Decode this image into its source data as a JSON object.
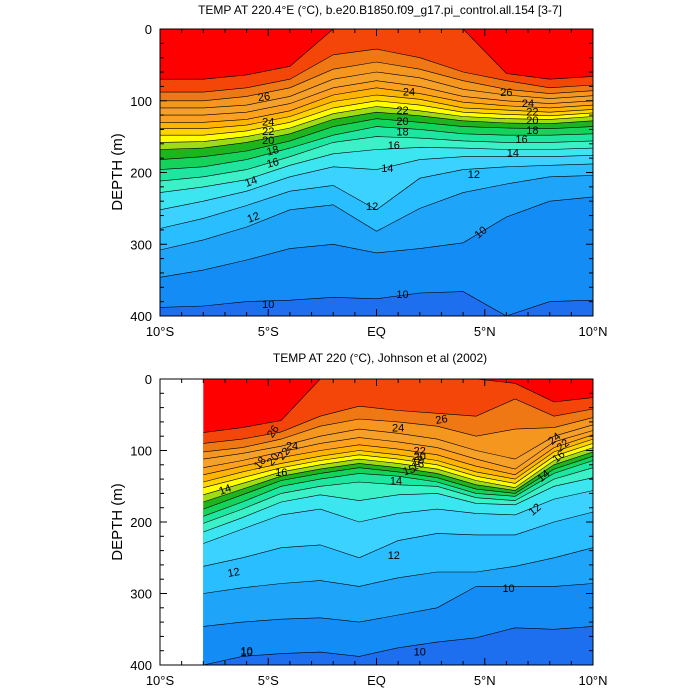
{
  "colors": {
    "c8": "#1e50e6",
    "c9": "#1e6ef0",
    "c10": "#148cf5",
    "c11": "#1ea5fa",
    "c12": "#28beff",
    "c13": "#3cd2ff",
    "c14": "#3ce6f0",
    "c15": "#3cf0c8",
    "c16": "#1ee6a0",
    "c17": "#14d25a",
    "c18": "#1eb41e",
    "c19": "#a0dc14",
    "c20": "#ffff00",
    "c21": "#ffd200",
    "c22": "#ffb400",
    "c23": "#ffa01e",
    "c24": "#f5a028",
    "c25": "#f5961e",
    "c26": "#f07814",
    "c27": "#f5460a",
    "c28": "#ff0000",
    "contour_line": "#000000",
    "frame": "#000000"
  },
  "chart_data": [
    {
      "type": "contour",
      "title": "TEMP AT 220.4°E (°C), b.e20.B1850.f09_g17.pi_control.all.154 [3-7]",
      "ylabel": "DEPTH (m)",
      "xlabel": "",
      "xlim": [
        -10,
        10
      ],
      "ylim": [
        400,
        0
      ],
      "y_inverted": true,
      "x_ticks": [
        -10,
        -5,
        0,
        5,
        10
      ],
      "x_tick_labels": [
        "10°S",
        "5°S",
        "EQ",
        "5°N",
        "10°N"
      ],
      "y_ticks": [
        0,
        100,
        200,
        300,
        400
      ],
      "y_tick_labels": [
        "0",
        "100",
        "200",
        "300",
        "400"
      ],
      "contour_interval": 1,
      "data_xmin": -10,
      "isotherms": [
        {
          "temp": 27,
          "y": [
            70,
            70,
            64,
            52,
            0,
            0,
            0,
            0,
            62,
            70,
            66
          ]
        },
        {
          "temp": 26,
          "y": [
            88,
            88,
            82,
            70,
            36,
            28,
            40,
            60,
            72,
            82,
            78
          ]
        },
        {
          "temp": 25,
          "y": [
            100,
            100,
            94,
            82,
            56,
            46,
            56,
            72,
            84,
            90,
            86
          ]
        },
        {
          "temp": 24,
          "y": [
            110,
            110,
            106,
            94,
            70,
            60,
            68,
            84,
            92,
            97,
            93
          ]
        },
        {
          "temp": 23,
          "y": [
            120,
            120,
            116,
            104,
            82,
            72,
            80,
            94,
            100,
            104,
            100
          ]
        },
        {
          "temp": 22,
          "y": [
            130,
            130,
            126,
            114,
            92,
            82,
            90,
            102,
            107,
            110,
            106
          ]
        },
        {
          "temp": 21,
          "y": [
            139,
            139,
            134,
            122,
            101,
            92,
            98,
            110,
            113,
            116,
            112
          ]
        },
        {
          "temp": 20,
          "y": [
            148,
            148,
            142,
            130,
            110,
            100,
            106,
            116,
            119,
            121,
            117
          ]
        },
        {
          "temp": 19,
          "y": [
            158,
            157,
            150,
            138,
            118,
            108,
            114,
            122,
            125,
            126,
            122
          ]
        },
        {
          "temp": 18,
          "y": [
            168,
            166,
            158,
            146,
            126,
            116,
            121,
            128,
            131,
            132,
            128
          ]
        },
        {
          "temp": 17,
          "y": [
            182,
            178,
            170,
            156,
            136,
            125,
            130,
            136,
            138,
            139,
            136
          ]
        },
        {
          "temp": 16,
          "y": [
            196,
            192,
            182,
            166,
            148,
            136,
            140,
            146,
            148,
            148,
            146
          ]
        },
        {
          "temp": 15,
          "y": [
            212,
            206,
            196,
            178,
            158,
            150,
            152,
            156,
            158,
            158,
            156
          ]
        },
        {
          "temp": 14,
          "y": [
            228,
            220,
            210,
            190,
            174,
            168,
            165,
            166,
            168,
            168,
            166
          ]
        },
        {
          "temp": 13,
          "y": [
            252,
            240,
            226,
            206,
            192,
            196,
            182,
            178,
            178,
            178,
            176
          ]
        },
        {
          "temp": 12,
          "y": [
            278,
            264,
            246,
            226,
            218,
            252,
            208,
            196,
            192,
            190,
            188
          ]
        },
        {
          "temp": 11,
          "y": [
            308,
            294,
            276,
            252,
            245,
            282,
            250,
            228,
            216,
            206,
            204
          ]
        },
        {
          "temp": 10,
          "y": [
            346,
            336,
            322,
            306,
            300,
            312,
            306,
            298,
            262,
            240,
            234
          ]
        },
        {
          "temp": 9,
          "y": [
            388,
            386,
            380,
            378,
            374,
            376,
            368,
            366,
            400,
            380,
            378
          ]
        }
      ],
      "labels": [
        {
          "text": "26",
          "x": -5.2,
          "y": 94,
          "rotate": -8
        },
        {
          "text": "24",
          "x": -5.0,
          "y": 129,
          "rotate": 0
        },
        {
          "text": "22",
          "x": -5.0,
          "y": 142,
          "rotate": 0
        },
        {
          "text": "20",
          "x": -5.0,
          "y": 155,
          "rotate": 0
        },
        {
          "text": "18",
          "x": -4.8,
          "y": 169,
          "rotate": -15
        },
        {
          "text": "16",
          "x": -4.8,
          "y": 186,
          "rotate": -15
        },
        {
          "text": "14",
          "x": -5.8,
          "y": 212,
          "rotate": -20
        },
        {
          "text": "12",
          "x": -5.7,
          "y": 262,
          "rotate": -20
        },
        {
          "text": "10",
          "x": -5.0,
          "y": 383,
          "rotate": 0
        },
        {
          "text": "24",
          "x": 1.5,
          "y": 87,
          "rotate": 0
        },
        {
          "text": "22",
          "x": 1.2,
          "y": 113,
          "rotate": 0
        },
        {
          "text": "20",
          "x": 1.2,
          "y": 128,
          "rotate": 0
        },
        {
          "text": "18",
          "x": 1.2,
          "y": 143,
          "rotate": 0
        },
        {
          "text": "16",
          "x": 0.8,
          "y": 162,
          "rotate": 0
        },
        {
          "text": "14",
          "x": 0.5,
          "y": 194,
          "rotate": 0
        },
        {
          "text": "12",
          "x": -0.2,
          "y": 247,
          "rotate": 0
        },
        {
          "text": "10",
          "x": 1.2,
          "y": 369,
          "rotate": 0
        },
        {
          "text": "26",
          "x": 6.0,
          "y": 88,
          "rotate": 0
        },
        {
          "text": "24",
          "x": 7.0,
          "y": 103,
          "rotate": 0
        },
        {
          "text": "22",
          "x": 7.2,
          "y": 115,
          "rotate": 0
        },
        {
          "text": "20",
          "x": 7.2,
          "y": 127,
          "rotate": 0
        },
        {
          "text": "18",
          "x": 7.2,
          "y": 141,
          "rotate": 0
        },
        {
          "text": "16",
          "x": 6.7,
          "y": 153,
          "rotate": 0
        },
        {
          "text": "14",
          "x": 6.3,
          "y": 172,
          "rotate": 0
        },
        {
          "text": "12",
          "x": 4.5,
          "y": 202,
          "rotate": 0
        },
        {
          "text": "10",
          "x": 4.8,
          "y": 283,
          "rotate": -40
        }
      ]
    },
    {
      "type": "contour",
      "title": "TEMP AT 220 (°C), Johnson et al (2002)",
      "ylabel": "DEPTH (m)",
      "xlabel": "",
      "xlim": [
        -10,
        10
      ],
      "ylim": [
        400,
        0
      ],
      "y_inverted": true,
      "x_ticks": [
        -10,
        -5,
        0,
        5,
        10
      ],
      "x_tick_labels": [
        "10°S",
        "5°S",
        "EQ",
        "5°N",
        "10°N"
      ],
      "y_ticks": [
        0,
        100,
        200,
        300,
        400
      ],
      "y_tick_labels": [
        "0",
        "100",
        "200",
        "300",
        "400"
      ],
      "contour_interval": 1,
      "data_xmin": -8,
      "isotherms": [
        {
          "temp": 27,
          "y": [
            75,
            68,
            58,
            0,
            0,
            0,
            0,
            0,
            6,
            32,
            26
          ]
        },
        {
          "temp": 26,
          "y": [
            90,
            84,
            74,
            52,
            38,
            44,
            48,
            52,
            28,
            52,
            42
          ]
        },
        {
          "temp": 25,
          "y": [
            102,
            96,
            84,
            66,
            56,
            60,
            66,
            80,
            70,
            68,
            54
          ]
        },
        {
          "temp": 24,
          "y": [
            112,
            104,
            94,
            80,
            70,
            76,
            84,
            100,
            112,
            80,
            64
          ]
        },
        {
          "temp": 23,
          "y": [
            124,
            114,
            102,
            90,
            82,
            88,
            96,
            112,
            126,
            88,
            72
          ]
        },
        {
          "temp": 22,
          "y": [
            134,
            122,
            110,
            100,
            92,
            98,
            106,
            122,
            134,
            96,
            78
          ]
        },
        {
          "temp": 21,
          "y": [
            144,
            130,
            118,
            108,
            100,
            106,
            114,
            130,
            140,
            102,
            84
          ]
        },
        {
          "temp": 20,
          "y": [
            152,
            138,
            124,
            114,
            106,
            112,
            120,
            136,
            146,
            108,
            90
          ]
        },
        {
          "temp": 19,
          "y": [
            162,
            146,
            130,
            120,
            112,
            118,
            126,
            142,
            152,
            114,
            96
          ]
        },
        {
          "temp": 18,
          "y": [
            172,
            154,
            136,
            126,
            118,
            124,
            132,
            148,
            156,
            120,
            102
          ]
        },
        {
          "temp": 17,
          "y": [
            182,
            162,
            142,
            132,
            124,
            130,
            138,
            154,
            160,
            126,
            108
          ]
        },
        {
          "temp": 16,
          "y": [
            192,
            172,
            150,
            140,
            132,
            136,
            144,
            160,
            164,
            132,
            114
          ]
        },
        {
          "temp": 15,
          "y": [
            202,
            182,
            160,
            150,
            144,
            148,
            150,
            166,
            170,
            140,
            124
          ]
        },
        {
          "temp": 14,
          "y": [
            214,
            194,
            172,
            162,
            170,
            162,
            160,
            174,
            176,
            150,
            138
          ]
        },
        {
          "temp": 13,
          "y": [
            230,
            210,
            190,
            182,
            200,
            188,
            182,
            188,
            190,
            168,
            156
          ]
        },
        {
          "temp": 12,
          "y": [
            262,
            250,
            236,
            232,
            250,
            226,
            216,
            218,
            218,
            200,
            186
          ]
        },
        {
          "temp": 11,
          "y": [
            300,
            292,
            286,
            282,
            290,
            278,
            270,
            270,
            262,
            250,
            236
          ]
        },
        {
          "temp": 10,
          "y": [
            346,
            340,
            336,
            334,
            340,
            330,
            320,
            290,
            290,
            290,
            286
          ]
        },
        {
          "temp": 9,
          "y": [
            400,
            388,
            384,
            382,
            388,
            376,
            368,
            362,
            348,
            350,
            346
          ]
        }
      ],
      "labels": [
        {
          "text": "26",
          "x": -4.8,
          "y": 73,
          "rotate": -55
        },
        {
          "text": "24",
          "x": -3.9,
          "y": 93,
          "rotate": 0
        },
        {
          "text": "22",
          "x": -4.3,
          "y": 104,
          "rotate": -50
        },
        {
          "text": "20",
          "x": -4.8,
          "y": 112,
          "rotate": -50
        },
        {
          "text": "18",
          "x": -5.4,
          "y": 117,
          "rotate": -50
        },
        {
          "text": "16",
          "x": -4.4,
          "y": 130,
          "rotate": 0
        },
        {
          "text": "14",
          "x": -7.0,
          "y": 154,
          "rotate": -20
        },
        {
          "text": "12",
          "x": -6.6,
          "y": 270,
          "rotate": -10
        },
        {
          "text": "10",
          "x": -6.0,
          "y": 382,
          "rotate": 0
        },
        {
          "text": "24",
          "x": 1.0,
          "y": 68,
          "rotate": 0
        },
        {
          "text": "26",
          "x": 3.0,
          "y": 56,
          "rotate": -10
        },
        {
          "text": "22",
          "x": 2.0,
          "y": 100,
          "rotate": 0
        },
        {
          "text": "20",
          "x": 2.0,
          "y": 108,
          "rotate": 0
        },
        {
          "text": "18",
          "x": 1.9,
          "y": 114,
          "rotate": -20
        },
        {
          "text": "16",
          "x": 1.9,
          "y": 120,
          "rotate": -20
        },
        {
          "text": "15",
          "x": 1.5,
          "y": 127,
          "rotate": -20
        },
        {
          "text": "14",
          "x": 0.9,
          "y": 142,
          "rotate": 0
        },
        {
          "text": "12",
          "x": 0.8,
          "y": 246,
          "rotate": 0
        },
        {
          "text": "10",
          "x": -6.0,
          "y": 380,
          "rotate": 0
        },
        {
          "text": "10",
          "x": 2.0,
          "y": 381,
          "rotate": 0
        },
        {
          "text": "24",
          "x": 8.2,
          "y": 83,
          "rotate": -40
        },
        {
          "text": "22",
          "x": 8.6,
          "y": 92,
          "rotate": -40
        },
        {
          "text": "16",
          "x": 8.4,
          "y": 108,
          "rotate": -40
        },
        {
          "text": "14",
          "x": 7.7,
          "y": 135,
          "rotate": -40
        },
        {
          "text": "12",
          "x": 7.3,
          "y": 182,
          "rotate": -40
        },
        {
          "text": "10",
          "x": 6.1,
          "y": 292,
          "rotate": 0
        }
      ]
    }
  ]
}
